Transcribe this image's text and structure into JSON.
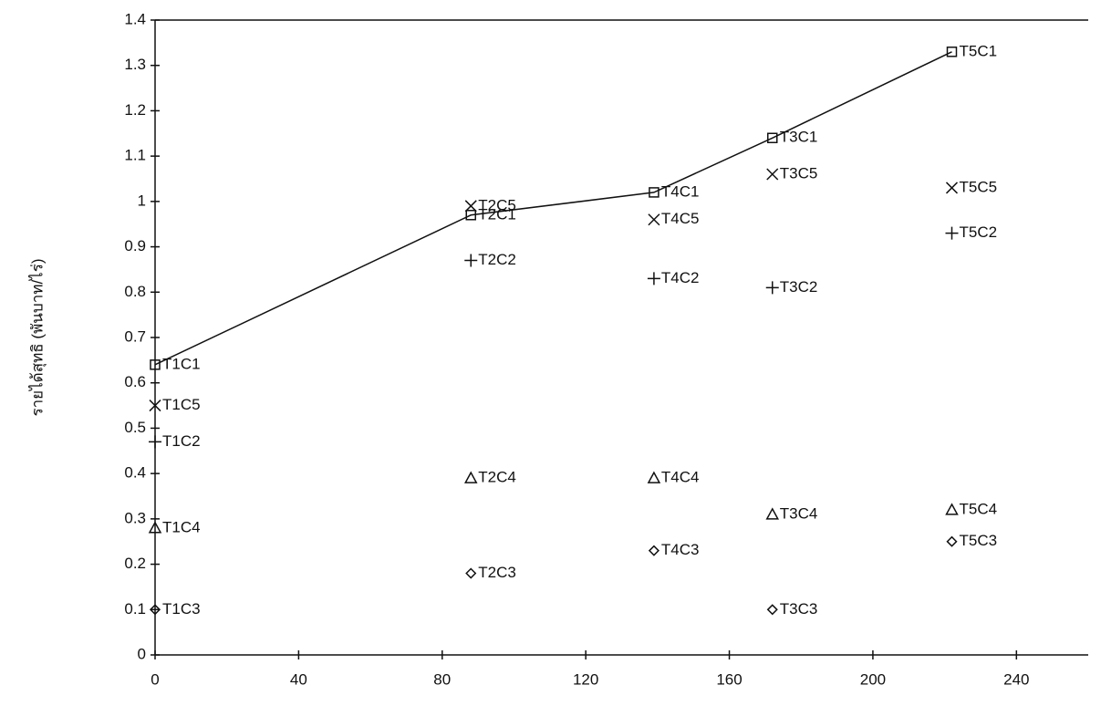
{
  "chart_data": {
    "type": "scatter",
    "y_label": "รายได้สุทธิ (พันบาท/ไร่)",
    "xlim": [
      0,
      260
    ],
    "ylim": [
      0,
      1.4
    ],
    "xticks": [
      0,
      40,
      80,
      120,
      160,
      200,
      240
    ],
    "yticks": [
      0,
      0.1,
      0.2,
      0.3,
      0.4,
      0.5,
      0.6,
      0.7,
      0.8,
      0.9,
      1,
      1.1,
      1.2,
      1.3,
      1.4
    ],
    "series": [
      {
        "marker": "square",
        "line": true,
        "color": "#111111",
        "x": [
          0,
          88,
          139,
          172,
          222
        ],
        "values": [
          0.64,
          0.97,
          1.02,
          1.14,
          1.33
        ],
        "labels": [
          "T1C1",
          "T2C1",
          "T4C1",
          "T3C1",
          "T5C1"
        ]
      },
      {
        "marker": "cross",
        "color": "#111111",
        "x": [
          0,
          88,
          139,
          172,
          222
        ],
        "values": [
          0.55,
          0.99,
          0.96,
          1.06,
          1.03
        ],
        "labels": [
          "T1C5",
          "T2C5",
          "T4C5",
          "T3C5",
          "T5C5"
        ]
      },
      {
        "marker": "plus",
        "color": "#111111",
        "x": [
          0,
          88,
          139,
          172,
          222
        ],
        "values": [
          0.47,
          0.87,
          0.83,
          0.81,
          0.93
        ],
        "labels": [
          "T1C2",
          "T2C2",
          "T4C2",
          "T3C2",
          "T5C2"
        ]
      },
      {
        "marker": "triangle",
        "color": "#111111",
        "x": [
          0,
          88,
          139,
          172,
          222
        ],
        "values": [
          0.28,
          0.39,
          0.39,
          0.31,
          0.32
        ],
        "labels": [
          "T1C4",
          "T2C4",
          "T4C4",
          "T3C4",
          "T5C4"
        ]
      },
      {
        "marker": "diamond",
        "color": "#111111",
        "x": [
          0,
          88,
          139,
          172,
          222
        ],
        "values": [
          0.1,
          0.18,
          0.23,
          0.1,
          0.25
        ],
        "labels": [
          "T1C3",
          "T2C3",
          "T4C3",
          "T3C3",
          "T5C3"
        ]
      }
    ]
  }
}
